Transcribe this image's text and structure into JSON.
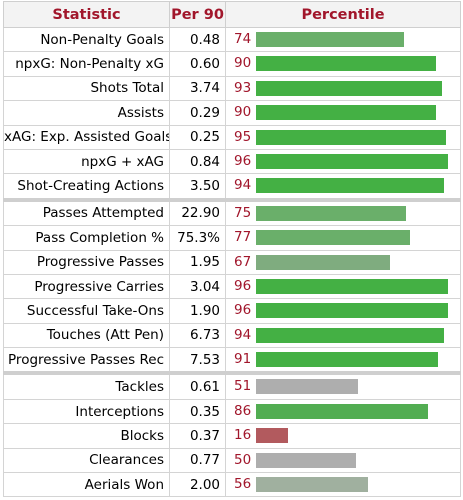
{
  "header": {
    "statistic": "Statistic",
    "per90": "Per 90",
    "percentile": "Percentile"
  },
  "rows": [
    {
      "stat": "Non-Penalty Goals",
      "per90": "0.48",
      "percentile": 74,
      "color": "#6aaf6a"
    },
    {
      "stat": "npxG: Non-Penalty xG",
      "per90": "0.60",
      "percentile": 90,
      "color": "#44b044"
    },
    {
      "stat": "Shots Total",
      "per90": "3.74",
      "percentile": 93,
      "color": "#44b044"
    },
    {
      "stat": "Assists",
      "per90": "0.29",
      "percentile": 90,
      "color": "#44b044"
    },
    {
      "stat": "xAG: Exp. Assisted Goals",
      "per90": "0.25",
      "percentile": 95,
      "color": "#44b044"
    },
    {
      "stat": "npxG + xAG",
      "per90": "0.84",
      "percentile": 96,
      "color": "#44b044"
    },
    {
      "stat": "Shot-Creating Actions",
      "per90": "3.50",
      "percentile": 94,
      "color": "#44b044"
    },
    {
      "stat": "Passes Attempted",
      "per90": "22.90",
      "percentile": 75,
      "color": "#6aaf6a",
      "sep": true
    },
    {
      "stat": "Pass Completion %",
      "per90": "75.3%",
      "percentile": 77,
      "color": "#6aaf6a"
    },
    {
      "stat": "Progressive Passes",
      "per90": "1.95",
      "percentile": 67,
      "color": "#7fac7f"
    },
    {
      "stat": "Progressive Carries",
      "per90": "3.04",
      "percentile": 96,
      "color": "#44b044"
    },
    {
      "stat": "Successful Take-Ons",
      "per90": "1.90",
      "percentile": 96,
      "color": "#44b044"
    },
    {
      "stat": "Touches (Att Pen)",
      "per90": "6.73",
      "percentile": 94,
      "color": "#44b044"
    },
    {
      "stat": "Progressive Passes Rec",
      "per90": "7.53",
      "percentile": 91,
      "color": "#44b044"
    },
    {
      "stat": "Tackles",
      "per90": "0.61",
      "percentile": 51,
      "color": "#aeaeae",
      "sep": true
    },
    {
      "stat": "Interceptions",
      "per90": "0.35",
      "percentile": 86,
      "color": "#52ad52"
    },
    {
      "stat": "Blocks",
      "per90": "0.37",
      "percentile": 16,
      "color": "#b25a5e"
    },
    {
      "stat": "Clearances",
      "per90": "0.77",
      "percentile": 50,
      "color": "#aeaeae"
    },
    {
      "stat": "Aerials Won",
      "per90": "2.00",
      "percentile": 56,
      "color": "#a0b09f"
    }
  ]
}
